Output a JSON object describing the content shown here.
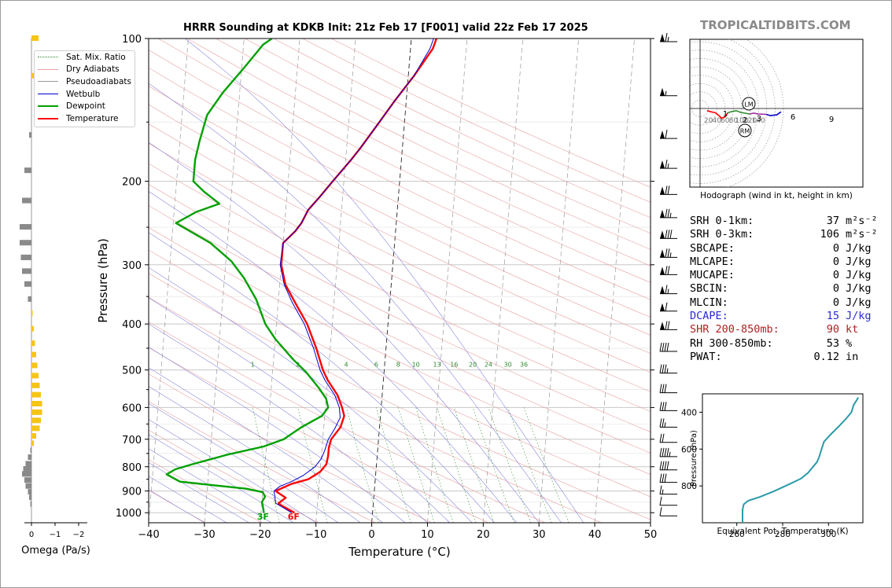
{
  "title": "HRRR Sounding at KDKB Init: 21z Feb 17 [F001] valid 22z Feb 17 2025",
  "brand": "TROPICALTIDBITS.COM",
  "legend": [
    {
      "label": "Sat. Mix. Ratio",
      "color": "#2e8b2e",
      "style": "dotted"
    },
    {
      "label": "Dry Adiabats",
      "color": "#e8a0a0",
      "style": "solid"
    },
    {
      "label": "Pseudoadiabats",
      "color": "#9a9a9a",
      "style": "solid"
    },
    {
      "label": "Wetbulb",
      "color": "#0000cc",
      "style": "solid"
    },
    {
      "label": "Dewpoint",
      "color": "#00a000",
      "style": "thick"
    },
    {
      "label": "Temperature",
      "color": "#ff0000",
      "style": "thick"
    }
  ],
  "stats": [
    {
      "label": "SRH 0-1km:",
      "value": "37",
      "unit": "m²s⁻²",
      "color": "#000000"
    },
    {
      "label": "SRH 0-3km:",
      "value": "106",
      "unit": "m²s⁻²",
      "color": "#000000"
    },
    {
      "label": "SBCAPE:",
      "value": "0",
      "unit": "J/kg",
      "color": "#000000"
    },
    {
      "label": "MLCAPE:",
      "value": "0",
      "unit": "J/kg",
      "color": "#000000"
    },
    {
      "label": "MUCAPE:",
      "value": "0",
      "unit": "J/kg",
      "color": "#000000"
    },
    {
      "label": "SBCIN:",
      "value": "0",
      "unit": "J/kg",
      "color": "#000000"
    },
    {
      "label": "MLCIN:",
      "value": "0",
      "unit": "J/kg",
      "color": "#000000"
    },
    {
      "label": "DCAPE:",
      "value": "15",
      "unit": "J/kg",
      "color": "#2a2ad6"
    },
    {
      "label": "SHR 200-850mb:",
      "value": "90",
      "unit": "kt",
      "color": "#b02020"
    },
    {
      "label": "RH 300-850mb:",
      "value": "53",
      "unit": "%",
      "color": "#000000"
    },
    {
      "label": "PWAT:",
      "value": "0.12",
      "unit": "in",
      "color": "#000000"
    }
  ],
  "chart_data": [
    {
      "type": "line",
      "name": "skew-t",
      "xlabel": "Temperature (°C)",
      "ylabel": "Pressure (hPa)",
      "xlim": [
        -40,
        50
      ],
      "ylim": [
        1050,
        100
      ],
      "yscale": "log",
      "x_ticks": [
        -40,
        -30,
        -20,
        -10,
        0,
        10,
        20,
        30,
        40,
        50
      ],
      "y_ticks": [
        100,
        200,
        300,
        400,
        500,
        600,
        700,
        800,
        900,
        1000
      ],
      "surface_labels": {
        "temperature": "6F",
        "dewpoint": "3F"
      },
      "mixing_ratio_labels": [
        "1",
        "2",
        "4",
        "6",
        "8",
        "10",
        "13",
        "16",
        "20",
        "24",
        "30",
        "36"
      ],
      "series": [
        {
          "name": "Temperature",
          "color": "#ff0000",
          "points": [
            [
              -14,
              1000
            ],
            [
              -16.5,
              965
            ],
            [
              -17,
              955
            ],
            [
              -15.8,
              930
            ],
            [
              -17.7,
              900
            ],
            [
              -15,
              870
            ],
            [
              -12,
              850
            ],
            [
              -10,
              820
            ],
            [
              -9,
              790
            ],
            [
              -8.8,
              760
            ],
            [
              -8.8,
              730
            ],
            [
              -8.5,
              700
            ],
            [
              -7,
              660
            ],
            [
              -6.5,
              625
            ],
            [
              -7,
              600
            ],
            [
              -8,
              565
            ],
            [
              -10,
              525
            ],
            [
              -11,
              500
            ],
            [
              -12.5,
              450
            ],
            [
              -14.5,
              400
            ],
            [
              -17,
              360
            ],
            [
              -19,
              330
            ],
            [
              -20,
              300
            ],
            [
              -20,
              270
            ],
            [
              -18,
              255
            ],
            [
              -17,
              245
            ],
            [
              -16,
              230
            ],
            [
              -14,
              215
            ],
            [
              -12,
              200
            ],
            [
              -9,
              180
            ],
            [
              -7.5,
              170
            ],
            [
              -4.5,
              150
            ],
            [
              -2,
              135
            ],
            [
              1,
              120
            ],
            [
              4,
              105
            ],
            [
              4.5,
              100
            ]
          ]
        },
        {
          "name": "Wetbulb",
          "color": "#0000cc",
          "points": [
            [
              -14.5,
              1000
            ],
            [
              -16.8,
              965
            ],
            [
              -17.5,
              955
            ],
            [
              -17.8,
              920
            ],
            [
              -18,
              900
            ],
            [
              -17,
              880
            ],
            [
              -15,
              860
            ],
            [
              -13,
              835
            ],
            [
              -11,
              800
            ],
            [
              -10,
              770
            ],
            [
              -9.5,
              740
            ],
            [
              -9,
              700
            ],
            [
              -8,
              665
            ],
            [
              -7.2,
              630
            ],
            [
              -7.5,
              600
            ],
            [
              -8.5,
              565
            ],
            [
              -10.5,
              525
            ],
            [
              -11.5,
              500
            ],
            [
              -13,
              450
            ],
            [
              -15,
              400
            ],
            [
              -17.5,
              360
            ],
            [
              -19.2,
              330
            ],
            [
              -20.2,
              300
            ],
            [
              -20,
              270
            ],
            [
              -18,
              255
            ],
            [
              -17,
              245
            ],
            [
              -16,
              230
            ],
            [
              -14,
              215
            ],
            [
              -12,
              200
            ],
            [
              -9,
              180
            ],
            [
              -7.5,
              170
            ],
            [
              -4.5,
              150
            ],
            [
              -2,
              135
            ],
            [
              1,
              120
            ],
            [
              3.5,
              105
            ],
            [
              4,
              100
            ]
          ]
        },
        {
          "name": "Dewpoint",
          "color": "#00a000",
          "points": [
            [
              -19.5,
              1000
            ],
            [
              -19.8,
              965
            ],
            [
              -20,
              950
            ],
            [
              -19.5,
              925
            ],
            [
              -20,
              905
            ],
            [
              -23,
              890
            ],
            [
              -35,
              860
            ],
            [
              -37.5,
              830
            ],
            [
              -36,
              810
            ],
            [
              -33,
              790
            ],
            [
              -27,
              755
            ],
            [
              -20.5,
              725
            ],
            [
              -17,
              700
            ],
            [
              -14,
              660
            ],
            [
              -10.5,
              625
            ],
            [
              -9.5,
              600
            ],
            [
              -10,
              575
            ],
            [
              -11.5,
              545
            ],
            [
              -14,
              505
            ],
            [
              -16.5,
              475
            ],
            [
              -20,
              430
            ],
            [
              -22,
              400
            ],
            [
              -24,
              355
            ],
            [
              -26.5,
              320
            ],
            [
              -29,
              295
            ],
            [
              -33,
              270
            ],
            [
              -39.5,
              245
            ],
            [
              -36,
              232
            ],
            [
              -32,
              223
            ],
            [
              -35,
              210
            ],
            [
              -37,
              200
            ],
            [
              -37,
              180
            ],
            [
              -36.5,
              165
            ],
            [
              -35.5,
              145
            ],
            [
              -33,
              130
            ],
            [
              -29.5,
              115
            ],
            [
              -26.5,
              103
            ],
            [
              -25,
              100
            ]
          ]
        }
      ]
    },
    {
      "type": "line",
      "name": "hodograph",
      "caption": "Hodograph (wind in kt, height in km)",
      "ring_labels": [
        "20",
        "40",
        "60",
        "80",
        "100",
        "120",
        "140"
      ],
      "markers": [
        "LM",
        "RM"
      ],
      "height_labels": [
        "1",
        "2",
        "3",
        "6",
        "9"
      ],
      "series": [
        {
          "name": "0-1 km",
          "color": "#ff0000",
          "points": [
            [
              -2,
              8
            ],
            [
              8,
              5
            ],
            [
              18,
              3
            ]
          ]
        },
        {
          "name": "1-3 km",
          "color": "#ff0000",
          "points": [
            [
              18,
              3
            ],
            [
              28,
              -5
            ],
            [
              32,
              -10
            ],
            [
              40,
              -8
            ],
            [
              48,
              3
            ]
          ]
        },
        {
          "name": "3-6 km",
          "color": "#2e8b2e",
          "points": [
            [
              48,
              3
            ],
            [
              58,
              6
            ],
            [
              68,
              8
            ],
            [
              78,
              4
            ],
            [
              88,
              2
            ],
            [
              100,
              0
            ]
          ]
        },
        {
          "name": "6-9 km",
          "color": "#a020a0",
          "points": [
            [
              100,
              0
            ],
            [
              110,
              2
            ],
            [
              120,
              0
            ],
            [
              140,
              -1
            ]
          ]
        },
        {
          "name": "9+ km",
          "color": "#0000cc",
          "points": [
            [
              140,
              -1
            ],
            [
              150,
              -4
            ],
            [
              165,
              -2
            ],
            [
              175,
              5
            ]
          ]
        }
      ]
    },
    {
      "type": "line",
      "name": "equivalent-potential-temperature",
      "xlabel": "Equivalent Pot. Temperature (K)",
      "ylabel": "Pressure (hPa)",
      "x_ticks": [
        260,
        280,
        300
      ],
      "y_ticks": [
        400,
        600,
        800
      ],
      "xlim": [
        245,
        315
      ],
      "ylim": [
        1000,
        300
      ],
      "series": [
        {
          "name": "theta-e",
          "color": "#2a9aa8",
          "points": [
            [
              262.5,
              1000
            ],
            [
              262.5,
              930
            ],
            [
              263,
              900
            ],
            [
              265,
              880
            ],
            [
              270,
              860
            ],
            [
              276,
              830
            ],
            [
              283,
              790
            ],
            [
              288,
              760
            ],
            [
              291,
              730
            ],
            [
              293,
              700
            ],
            [
              295,
              670
            ],
            [
              296,
              640
            ],
            [
              297,
              600
            ],
            [
              298,
              560
            ],
            [
              301,
              520
            ],
            [
              305,
              470
            ],
            [
              308,
              430
            ],
            [
              310,
              400
            ],
            [
              311,
              360
            ],
            [
              313,
              320
            ]
          ]
        }
      ]
    },
    {
      "type": "bar",
      "name": "omega",
      "xlabel": "Omega (Pa/s)",
      "x_ticks": [
        0,
        -1,
        -2
      ],
      "rows": [
        {
          "p": 100,
          "v": 0.3
        },
        {
          "p": 120,
          "v": 0.2
        },
        {
          "p": 160,
          "v": -0.1
        },
        {
          "p": 190,
          "v": -0.3
        },
        {
          "p": 220,
          "v": -0.4
        },
        {
          "p": 250,
          "v": -0.5
        },
        {
          "p": 270,
          "v": -0.5
        },
        {
          "p": 290,
          "v": -0.45
        },
        {
          "p": 310,
          "v": -0.4
        },
        {
          "p": 330,
          "v": -0.3
        },
        {
          "p": 355,
          "v": -0.15
        },
        {
          "p": 380,
          "v": 0.05
        },
        {
          "p": 410,
          "v": 0.1
        },
        {
          "p": 440,
          "v": 0.15
        },
        {
          "p": 465,
          "v": 0.2
        },
        {
          "p": 490,
          "v": 0.25
        },
        {
          "p": 515,
          "v": 0.3
        },
        {
          "p": 540,
          "v": 0.35
        },
        {
          "p": 565,
          "v": 0.4
        },
        {
          "p": 590,
          "v": 0.45
        },
        {
          "p": 615,
          "v": 0.45
        },
        {
          "p": 640,
          "v": 0.4
        },
        {
          "p": 665,
          "v": 0.35
        },
        {
          "p": 690,
          "v": 0.2
        },
        {
          "p": 715,
          "v": 0.1
        },
        {
          "p": 740,
          "v": -0.05
        },
        {
          "p": 765,
          "v": -0.15
        },
        {
          "p": 790,
          "v": -0.25
        },
        {
          "p": 810,
          "v": -0.35
        },
        {
          "p": 830,
          "v": -0.4
        },
        {
          "p": 855,
          "v": -0.3
        },
        {
          "p": 880,
          "v": -0.25
        },
        {
          "p": 905,
          "v": -0.15
        },
        {
          "p": 930,
          "v": -0.1
        },
        {
          "p": 960,
          "v": -0.05
        }
      ]
    },
    {
      "type": "barbs",
      "name": "wind-barbs",
      "levels": [
        {
          "p": 100,
          "s": 65
        },
        {
          "p": 130,
          "s": 55
        },
        {
          "p": 160,
          "s": 60
        },
        {
          "p": 185,
          "s": 65
        },
        {
          "p": 210,
          "s": 70
        },
        {
          "p": 235,
          "s": 75
        },
        {
          "p": 260,
          "s": 80
        },
        {
          "p": 285,
          "s": 75
        },
        {
          "p": 310,
          "s": 70
        },
        {
          "p": 340,
          "s": 65
        },
        {
          "p": 370,
          "s": 60
        },
        {
          "p": 405,
          "s": 70
        },
        {
          "p": 450,
          "s": 40
        },
        {
          "p": 500,
          "s": 35
        },
        {
          "p": 550,
          "s": 30
        },
        {
          "p": 600,
          "s": 30
        },
        {
          "p": 650,
          "s": 25
        },
        {
          "p": 700,
          "s": 20
        },
        {
          "p": 750,
          "s": 45
        },
        {
          "p": 800,
          "s": 40
        },
        {
          "p": 850,
          "s": 30
        },
        {
          "p": 900,
          "s": 15
        },
        {
          "p": 950,
          "s": 10
        },
        {
          "p": 1000,
          "s": 10
        }
      ]
    }
  ]
}
